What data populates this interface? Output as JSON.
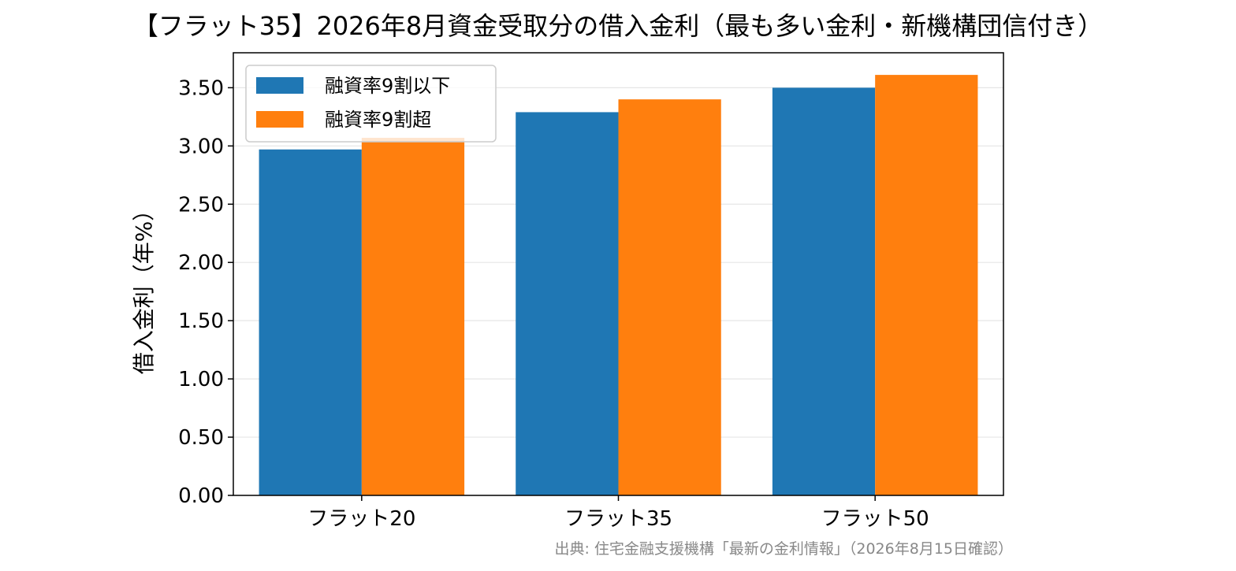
{
  "chart_data": {
    "type": "bar",
    "title": "【フラット35】2026年8月資金受取分の借入金利（最も多い金利・新機構団信付き）",
    "xlabel": "",
    "ylabel": "借入金利（年%）",
    "categories": [
      "フラット20",
      "フラット35",
      "フラット50"
    ],
    "series": [
      {
        "name": "融資率9割以下",
        "values": [
          2.97,
          3.29,
          3.5
        ],
        "color": "#1f77b4"
      },
      {
        "name": "融資率9割超",
        "values": [
          3.07,
          3.4,
          3.61
        ],
        "color": "#ff7f0e"
      }
    ],
    "ylim": [
      0,
      3.8
    ],
    "yticks": [
      0,
      0.5,
      1.0,
      1.5,
      2.0,
      2.5,
      3.0,
      3.5
    ],
    "ytick_labels": [
      "0.00",
      "0.50",
      "1.00",
      "1.50",
      "2.00",
      "2.50",
      "3.00",
      "3.50"
    ],
    "grid": "horizontal",
    "legend_position": "top-left",
    "source_note": "出典: 住宅金融支援機構「最新の金利情報」（2026年8月15日確認）"
  }
}
